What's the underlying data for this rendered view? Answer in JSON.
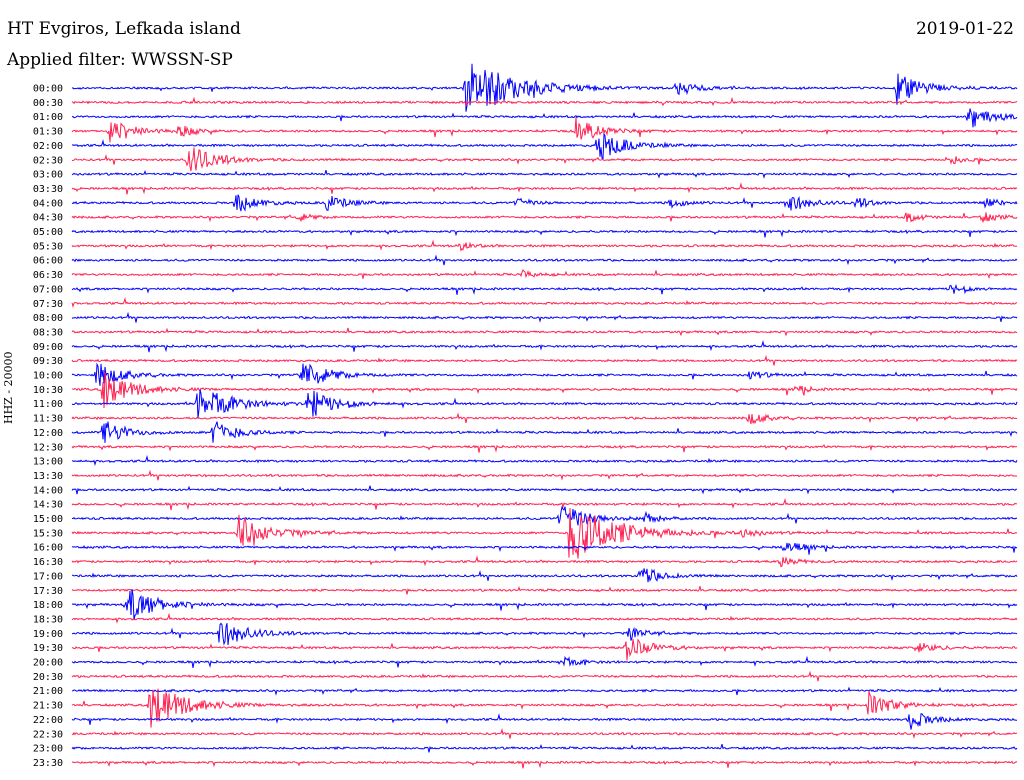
{
  "header": {
    "station": "HT Evgiros, Lefkada island",
    "filter": "Applied filter: WWSSN-SP",
    "date": "2019-01-22"
  },
  "chart_data": {
    "type": "helicorder",
    "channel_label": "HHZ - 20000",
    "row_labels": [
      "00:00",
      "00:30",
      "01:00",
      "01:30",
      "02:00",
      "02:30",
      "03:00",
      "03:30",
      "04:00",
      "04:30",
      "05:00",
      "05:30",
      "06:00",
      "06:30",
      "07:00",
      "07:30",
      "08:00",
      "08:30",
      "09:00",
      "09:30",
      "10:00",
      "10:30",
      "11:00",
      "11:30",
      "12:00",
      "12:30",
      "13:00",
      "13:30",
      "14:00",
      "14:30",
      "15:00",
      "15:30",
      "16:00",
      "16:30",
      "17:00",
      "17:30",
      "18:00",
      "18:30",
      "19:00",
      "19:30",
      "20:00",
      "20:30",
      "21:00",
      "21:30",
      "22:00",
      "22:30",
      "23:00",
      "23:30"
    ],
    "colors": {
      "even_rows": "#0000ff",
      "odd_rows": "#ff2050"
    },
    "minutes_per_row": 30,
    "events": [
      {
        "row": 0,
        "min": 12.5,
        "amp": 6.5
      },
      {
        "row": 0,
        "min": 19.2,
        "amp": 1.6
      },
      {
        "row": 0,
        "min": 26.2,
        "amp": 3.0
      },
      {
        "row": 2,
        "min": 28.5,
        "amp": 2.2
      },
      {
        "row": 3,
        "min": 1.2,
        "amp": 2.4
      },
      {
        "row": 3,
        "min": 3.4,
        "amp": 1.2
      },
      {
        "row": 3,
        "min": 16.0,
        "amp": 2.5
      },
      {
        "row": 4,
        "min": 16.7,
        "amp": 3.0
      },
      {
        "row": 5,
        "min": 3.7,
        "amp": 3.0
      },
      {
        "row": 5,
        "min": 27.8,
        "amp": 1.0
      },
      {
        "row": 8,
        "min": 5.2,
        "amp": 2.0
      },
      {
        "row": 8,
        "min": 8.1,
        "amp": 1.7
      },
      {
        "row": 8,
        "min": 14.1,
        "amp": 1.0
      },
      {
        "row": 8,
        "min": 19.0,
        "amp": 1.0
      },
      {
        "row": 8,
        "min": 22.7,
        "amp": 2.0
      },
      {
        "row": 8,
        "min": 24.9,
        "amp": 1.0
      },
      {
        "row": 8,
        "min": 29.0,
        "amp": 1.0
      },
      {
        "row": 9,
        "min": 7.2,
        "amp": 0.8
      },
      {
        "row": 9,
        "min": 26.5,
        "amp": 1.0
      },
      {
        "row": 9,
        "min": 28.9,
        "amp": 1.0
      },
      {
        "row": 11,
        "min": 12.3,
        "amp": 0.8
      },
      {
        "row": 13,
        "min": 14.3,
        "amp": 0.8
      },
      {
        "row": 14,
        "min": 27.9,
        "amp": 1.0
      },
      {
        "row": 20,
        "min": 0.8,
        "amp": 2.5
      },
      {
        "row": 20,
        "min": 7.3,
        "amp": 3.0
      },
      {
        "row": 20,
        "min": 21.5,
        "amp": 1.0
      },
      {
        "row": 21,
        "min": 1.0,
        "amp": 3.5
      },
      {
        "row": 21,
        "min": 23.0,
        "amp": 0.8
      },
      {
        "row": 22,
        "min": 4.0,
        "amp": 4.0
      },
      {
        "row": 22,
        "min": 7.5,
        "amp": 3.0
      },
      {
        "row": 23,
        "min": 21.5,
        "amp": 1.2
      },
      {
        "row": 24,
        "min": 1.0,
        "amp": 2.5
      },
      {
        "row": 24,
        "min": 4.5,
        "amp": 2.5
      },
      {
        "row": 30,
        "min": 15.5,
        "amp": 3.0
      },
      {
        "row": 30,
        "min": 18.2,
        "amp": 1.0
      },
      {
        "row": 31,
        "min": 5.3,
        "amp": 3.5
      },
      {
        "row": 31,
        "min": 15.8,
        "amp": 6.5
      },
      {
        "row": 31,
        "min": 21.3,
        "amp": 1.0
      },
      {
        "row": 32,
        "min": 22.6,
        "amp": 1.5
      },
      {
        "row": 33,
        "min": 22.5,
        "amp": 1.0
      },
      {
        "row": 34,
        "min": 18.0,
        "amp": 2.0
      },
      {
        "row": 36,
        "min": 1.8,
        "amp": 3.5
      },
      {
        "row": 38,
        "min": 4.7,
        "amp": 3.0
      },
      {
        "row": 38,
        "min": 17.7,
        "amp": 1.2
      },
      {
        "row": 39,
        "min": 17.6,
        "amp": 2.5
      },
      {
        "row": 39,
        "min": 26.9,
        "amp": 1.2
      },
      {
        "row": 40,
        "min": 15.5,
        "amp": 1.2
      },
      {
        "row": 43,
        "min": 2.5,
        "amp": 4.5
      },
      {
        "row": 43,
        "min": 25.3,
        "amp": 2.5
      },
      {
        "row": 44,
        "min": 26.6,
        "amp": 2.0
      }
    ]
  }
}
